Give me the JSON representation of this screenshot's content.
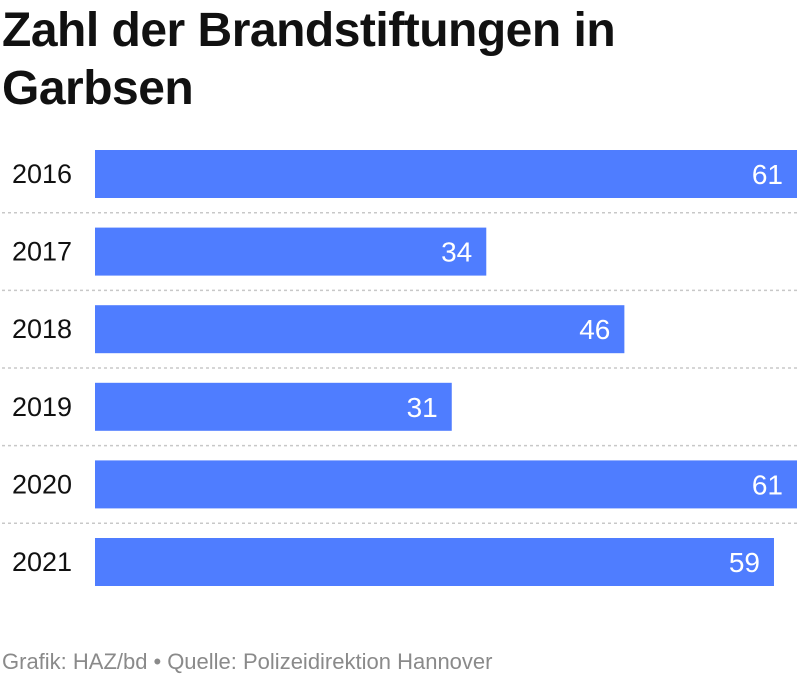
{
  "title": "Zahl der Brandstiftungen in Garbsen",
  "footer": {
    "grafik": "Grafik: HAZ/bd",
    "separator": "•",
    "source": "Quelle: Polizeidirektion Hannover"
  },
  "colors": {
    "bar": "#4f7dff",
    "bar_label": "#ffffff",
    "divider": "#c8c8c8",
    "text": "#111111",
    "footer": "#8a8a8a"
  },
  "chart_data": {
    "type": "bar",
    "orientation": "horizontal",
    "categories": [
      "2016",
      "2017",
      "2018",
      "2019",
      "2020",
      "2021"
    ],
    "values": [
      61,
      34,
      46,
      31,
      61,
      59
    ],
    "title": "Zahl der Brandstiftungen in Garbsen",
    "xlim": [
      0,
      61
    ],
    "data_labels": true,
    "grid": false
  }
}
